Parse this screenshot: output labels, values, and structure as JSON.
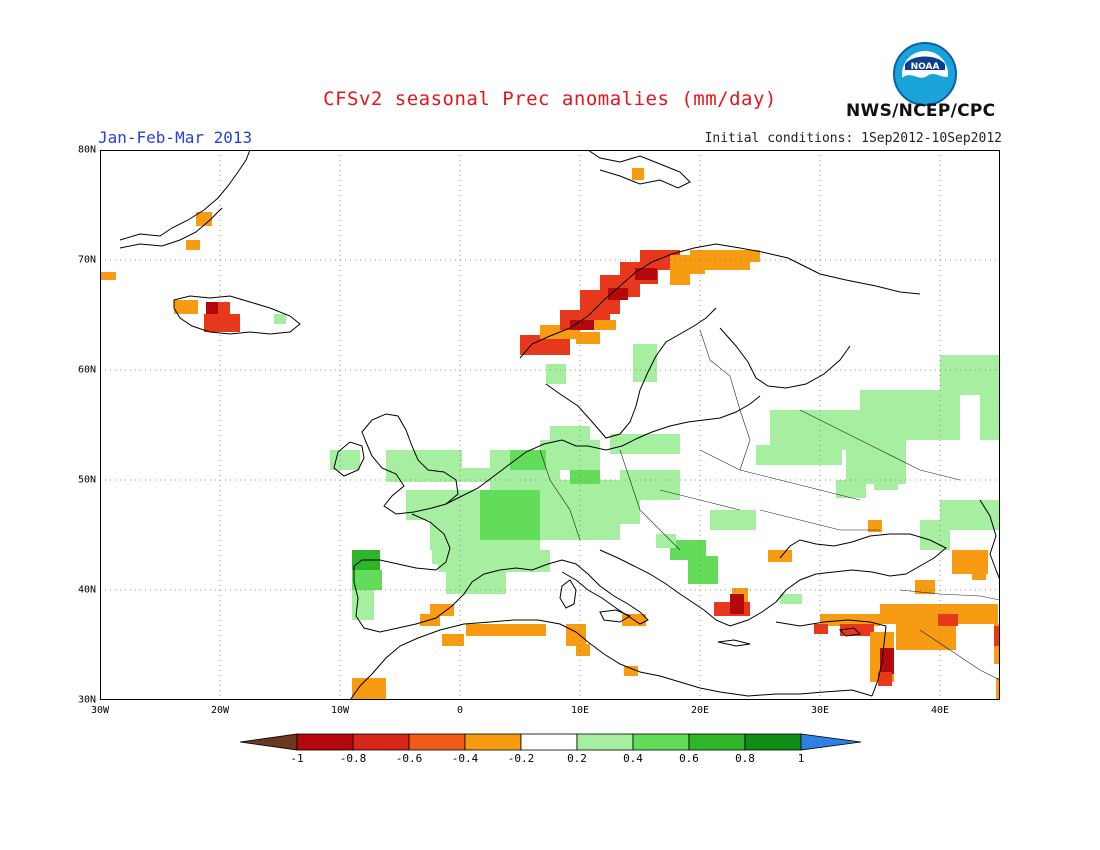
{
  "header": {
    "title": "CFSv2 seasonal Prec anomalies (mm/day)",
    "period": "Jan-Feb-Mar 2013",
    "initial_conditions": "Initial conditions: 1Sep2012-10Sep2012",
    "agency": "NWS/NCEP/CPC",
    "logo_text": "NOAA"
  },
  "map": {
    "lon_range": [
      -30,
      45
    ],
    "lat_range": [
      30,
      80
    ],
    "lon_labels": [
      "30W",
      "20W",
      "10W",
      "0",
      "10E",
      "20E",
      "30E",
      "40E"
    ],
    "lat_labels": [
      "30N",
      "40N",
      "50N",
      "60N",
      "70N",
      "80N"
    ]
  },
  "legend": {
    "labels": [
      "-1",
      "-0.8",
      "-0.6",
      "-0.4",
      "-0.2",
      "0.2",
      "0.4",
      "0.6",
      "0.8",
      "1"
    ],
    "colors": [
      "#6b3a1e",
      "#b4090c",
      "#d9261b",
      "#f05a19",
      "#f79b12",
      "#ffffff",
      "#a6eea0",
      "#63dc5a",
      "#2fb52a",
      "#118d16",
      "#2f7fe6"
    ]
  },
  "anomaly_colors": {
    "dry_strong": "#b4090c",
    "dry_mid": "#e8381c",
    "dry_weak": "#f79b12",
    "wet_weak": "#a6eea0",
    "wet_mid": "#63dc5a",
    "wet_strong": "#2fb52a"
  }
}
